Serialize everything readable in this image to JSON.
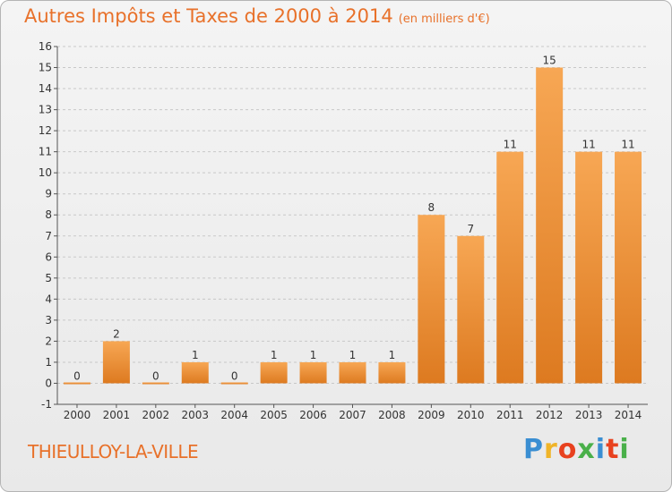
{
  "title": "Autres Impôts et Taxes de 2000 à 2014",
  "subtitle": "(en milliers d'€)",
  "commune": "THIEULLOY-LA-VILLE",
  "logo": {
    "text": "Proxiti",
    "colors": [
      "#3a8ed2",
      "#f0b428",
      "#e8421f",
      "#4ab04a",
      "#3a8ed2",
      "#e8421f",
      "#4ab04a"
    ]
  },
  "colors": {
    "bar_light": "#f6a24e",
    "bar_dark": "#e07b22",
    "title": "#e8712a",
    "grid": "#c8c8c8"
  },
  "chart_data": {
    "type": "bar",
    "title": "Autres Impôts et Taxes de 2000 à 2014",
    "subtitle": "(en milliers d'€)",
    "categories": [
      "2000",
      "2001",
      "2002",
      "2003",
      "2004",
      "2005",
      "2006",
      "2007",
      "2008",
      "2009",
      "2010",
      "2011",
      "2012",
      "2013",
      "2014"
    ],
    "values": [
      0,
      2,
      0,
      1,
      0,
      1,
      1,
      1,
      1,
      8,
      7,
      11,
      15,
      11,
      11
    ],
    "ylim": [
      -1,
      16
    ],
    "yticks": [
      -1,
      0,
      1,
      2,
      3,
      4,
      5,
      6,
      7,
      8,
      9,
      10,
      11,
      12,
      13,
      14,
      15,
      16
    ],
    "grid": "horizontal-dashed",
    "data_labels": true
  }
}
